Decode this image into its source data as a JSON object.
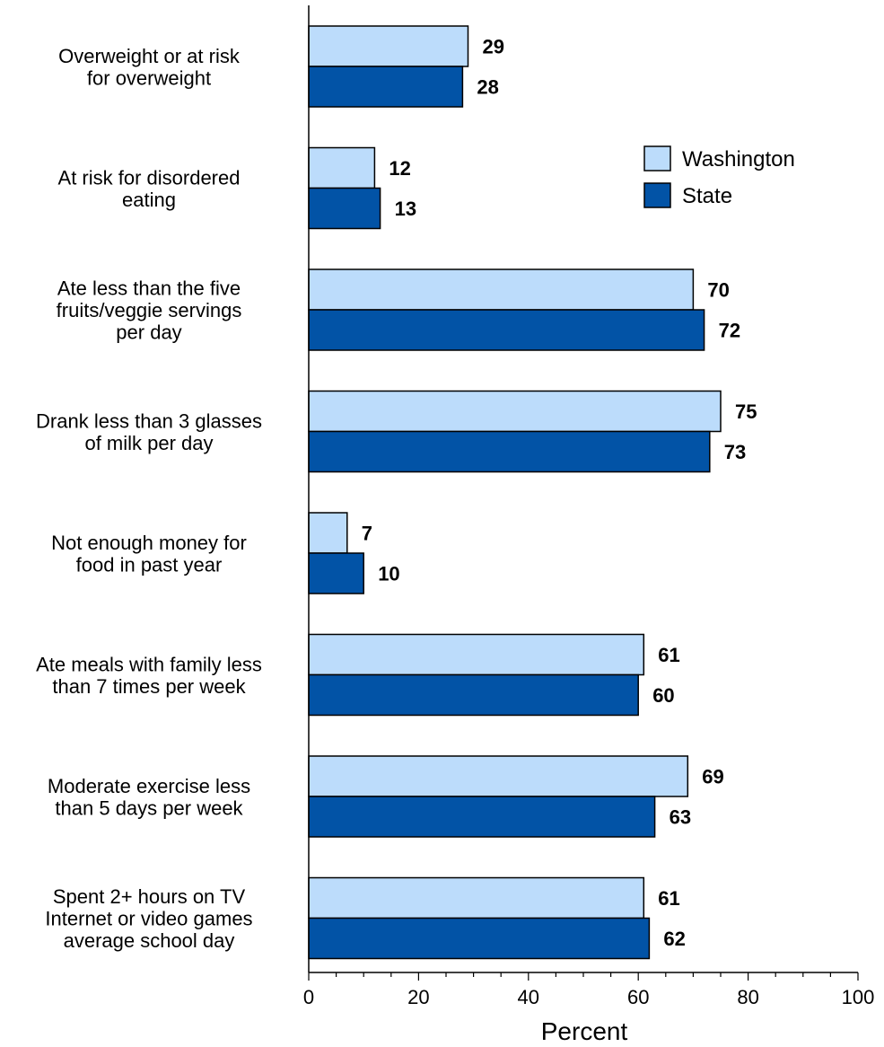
{
  "chart_data": {
    "type": "bar",
    "orientation": "horizontal",
    "categories": [
      [
        "Overweight or at risk",
        "for overweight"
      ],
      [
        "At risk for disordered",
        "eating"
      ],
      [
        "Ate less than the five",
        "fruits/veggie servings",
        "per day"
      ],
      [
        "Drank less than 3 glasses",
        "of milk per day"
      ],
      [
        "Not enough money for",
        "food in past year"
      ],
      [
        "Ate meals with family less",
        "than 7 times per week"
      ],
      [
        "Moderate exercise less",
        "than 5 days per week"
      ],
      [
        "Spent 2+ hours on TV",
        "Internet or video games",
        "average school day"
      ]
    ],
    "series": [
      {
        "name": "Washington",
        "color": "#bcdcfb",
        "values": [
          29,
          12,
          70,
          75,
          7,
          61,
          69,
          61
        ]
      },
      {
        "name": "State",
        "color": "#0253a6",
        "values": [
          28,
          13,
          72,
          73,
          10,
          60,
          63,
          62
        ]
      }
    ],
    "xlabel": "Percent",
    "xlim": [
      0,
      100
    ],
    "xticks": [
      0,
      20,
      40,
      60,
      80,
      100
    ],
    "grid": false,
    "legend_position": "top-right",
    "data_labels": true
  }
}
